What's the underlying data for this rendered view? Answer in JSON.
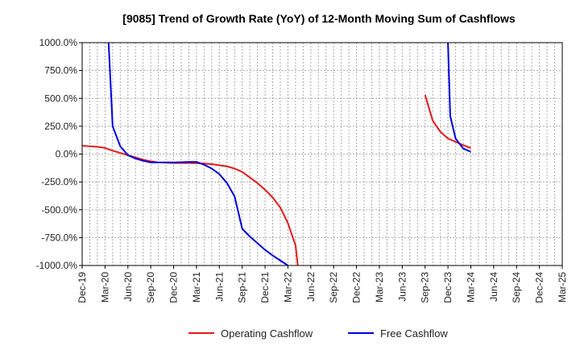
{
  "chart_data": {
    "type": "line",
    "title": "[9085]  Trend of Growth Rate (YoY) of 12-Month Moving Sum of Cashflows",
    "xlabel": "",
    "ylabel": "",
    "ylim": [
      -1000,
      1000
    ],
    "y_ticks": [
      1000,
      750,
      500,
      250,
      0,
      -250,
      -500,
      -750,
      -1000
    ],
    "y_tick_labels": [
      "1000.0%",
      "750.0%",
      "500.0%",
      "250.0%",
      "0.0%",
      "-250.0%",
      "-500.0%",
      "-750.0%",
      "-1000.0%"
    ],
    "x_tick_labels": [
      "Dec-19",
      "Mar-20",
      "Jun-20",
      "Sep-20",
      "Dec-20",
      "Mar-21",
      "Jun-21",
      "Sep-21",
      "Dec-21",
      "Mar-22",
      "Jun-22",
      "Sep-22",
      "Dec-22",
      "Mar-23",
      "Jun-23",
      "Sep-23",
      "Dec-23",
      "Mar-24",
      "Jun-24",
      "Sep-24",
      "Dec-24",
      "Mar-25"
    ],
    "grid": true,
    "legend_position": "bottom",
    "series": [
      {
        "name": "Operating Cashflow",
        "color": "#e31a1c",
        "points": [
          [
            "2019-12",
            75
          ],
          [
            "2020-01",
            70
          ],
          [
            "2020-02",
            65
          ],
          [
            "2020-03",
            55
          ],
          [
            "2020-04",
            30
          ],
          [
            "2020-05",
            10
          ],
          [
            "2020-06",
            -10
          ],
          [
            "2020-07",
            -30
          ],
          [
            "2020-08",
            -50
          ],
          [
            "2020-09",
            -65
          ],
          [
            "2020-10",
            -75
          ],
          [
            "2020-11",
            -78
          ],
          [
            "2020-12",
            -80
          ],
          [
            "2021-01",
            -80
          ],
          [
            "2021-02",
            -80
          ],
          [
            "2021-03",
            -82
          ],
          [
            "2021-04",
            -85
          ],
          [
            "2021-05",
            -90
          ],
          [
            "2021-06",
            -100
          ],
          [
            "2021-07",
            -110
          ],
          [
            "2021-08",
            -130
          ],
          [
            "2021-09",
            -160
          ],
          [
            "2021-10",
            -210
          ],
          [
            "2021-11",
            -260
          ],
          [
            "2021-12",
            -320
          ],
          [
            "2022-01",
            -390
          ],
          [
            "2022-02",
            -480
          ],
          [
            "2022-03",
            -620
          ],
          [
            "2022-04",
            -820
          ],
          [
            "2022-04-10",
            -1000
          ],
          null,
          [
            "2023-09",
            530
          ],
          [
            "2023-10",
            300
          ],
          [
            "2023-11",
            200
          ],
          [
            "2023-12",
            140
          ],
          [
            "2024-01",
            110
          ],
          [
            "2024-02",
            80
          ],
          [
            "2024-03",
            55
          ]
        ]
      },
      {
        "name": "Free Cashflow",
        "color": "#0000dd",
        "points": [
          [
            "2020-03-15",
            1000
          ],
          [
            "2020-04",
            250
          ],
          [
            "2020-05",
            70
          ],
          [
            "2020-06",
            -10
          ],
          [
            "2020-07",
            -40
          ],
          [
            "2020-08",
            -60
          ],
          [
            "2020-09",
            -75
          ],
          [
            "2020-10",
            -75
          ],
          [
            "2020-11",
            -75
          ],
          [
            "2020-12",
            -75
          ],
          [
            "2021-01",
            -73
          ],
          [
            "2021-02",
            -70
          ],
          [
            "2021-03",
            -70
          ],
          [
            "2021-04",
            -95
          ],
          [
            "2021-05",
            -130
          ],
          [
            "2021-06",
            -180
          ],
          [
            "2021-07",
            -260
          ],
          [
            "2021-08",
            -380
          ],
          [
            "2021-09",
            -670
          ],
          [
            "2021-10",
            -740
          ],
          [
            "2021-11",
            -800
          ],
          [
            "2021-12",
            -860
          ],
          [
            "2022-01",
            -910
          ],
          [
            "2022-02",
            -955
          ],
          [
            "2022-03",
            -1000
          ],
          null,
          [
            "2023-12-01",
            1000
          ],
          [
            "2023-12-10",
            340
          ],
          [
            "2024-01",
            140
          ],
          [
            "2024-02",
            50
          ],
          [
            "2024-03",
            20
          ]
        ]
      }
    ]
  }
}
